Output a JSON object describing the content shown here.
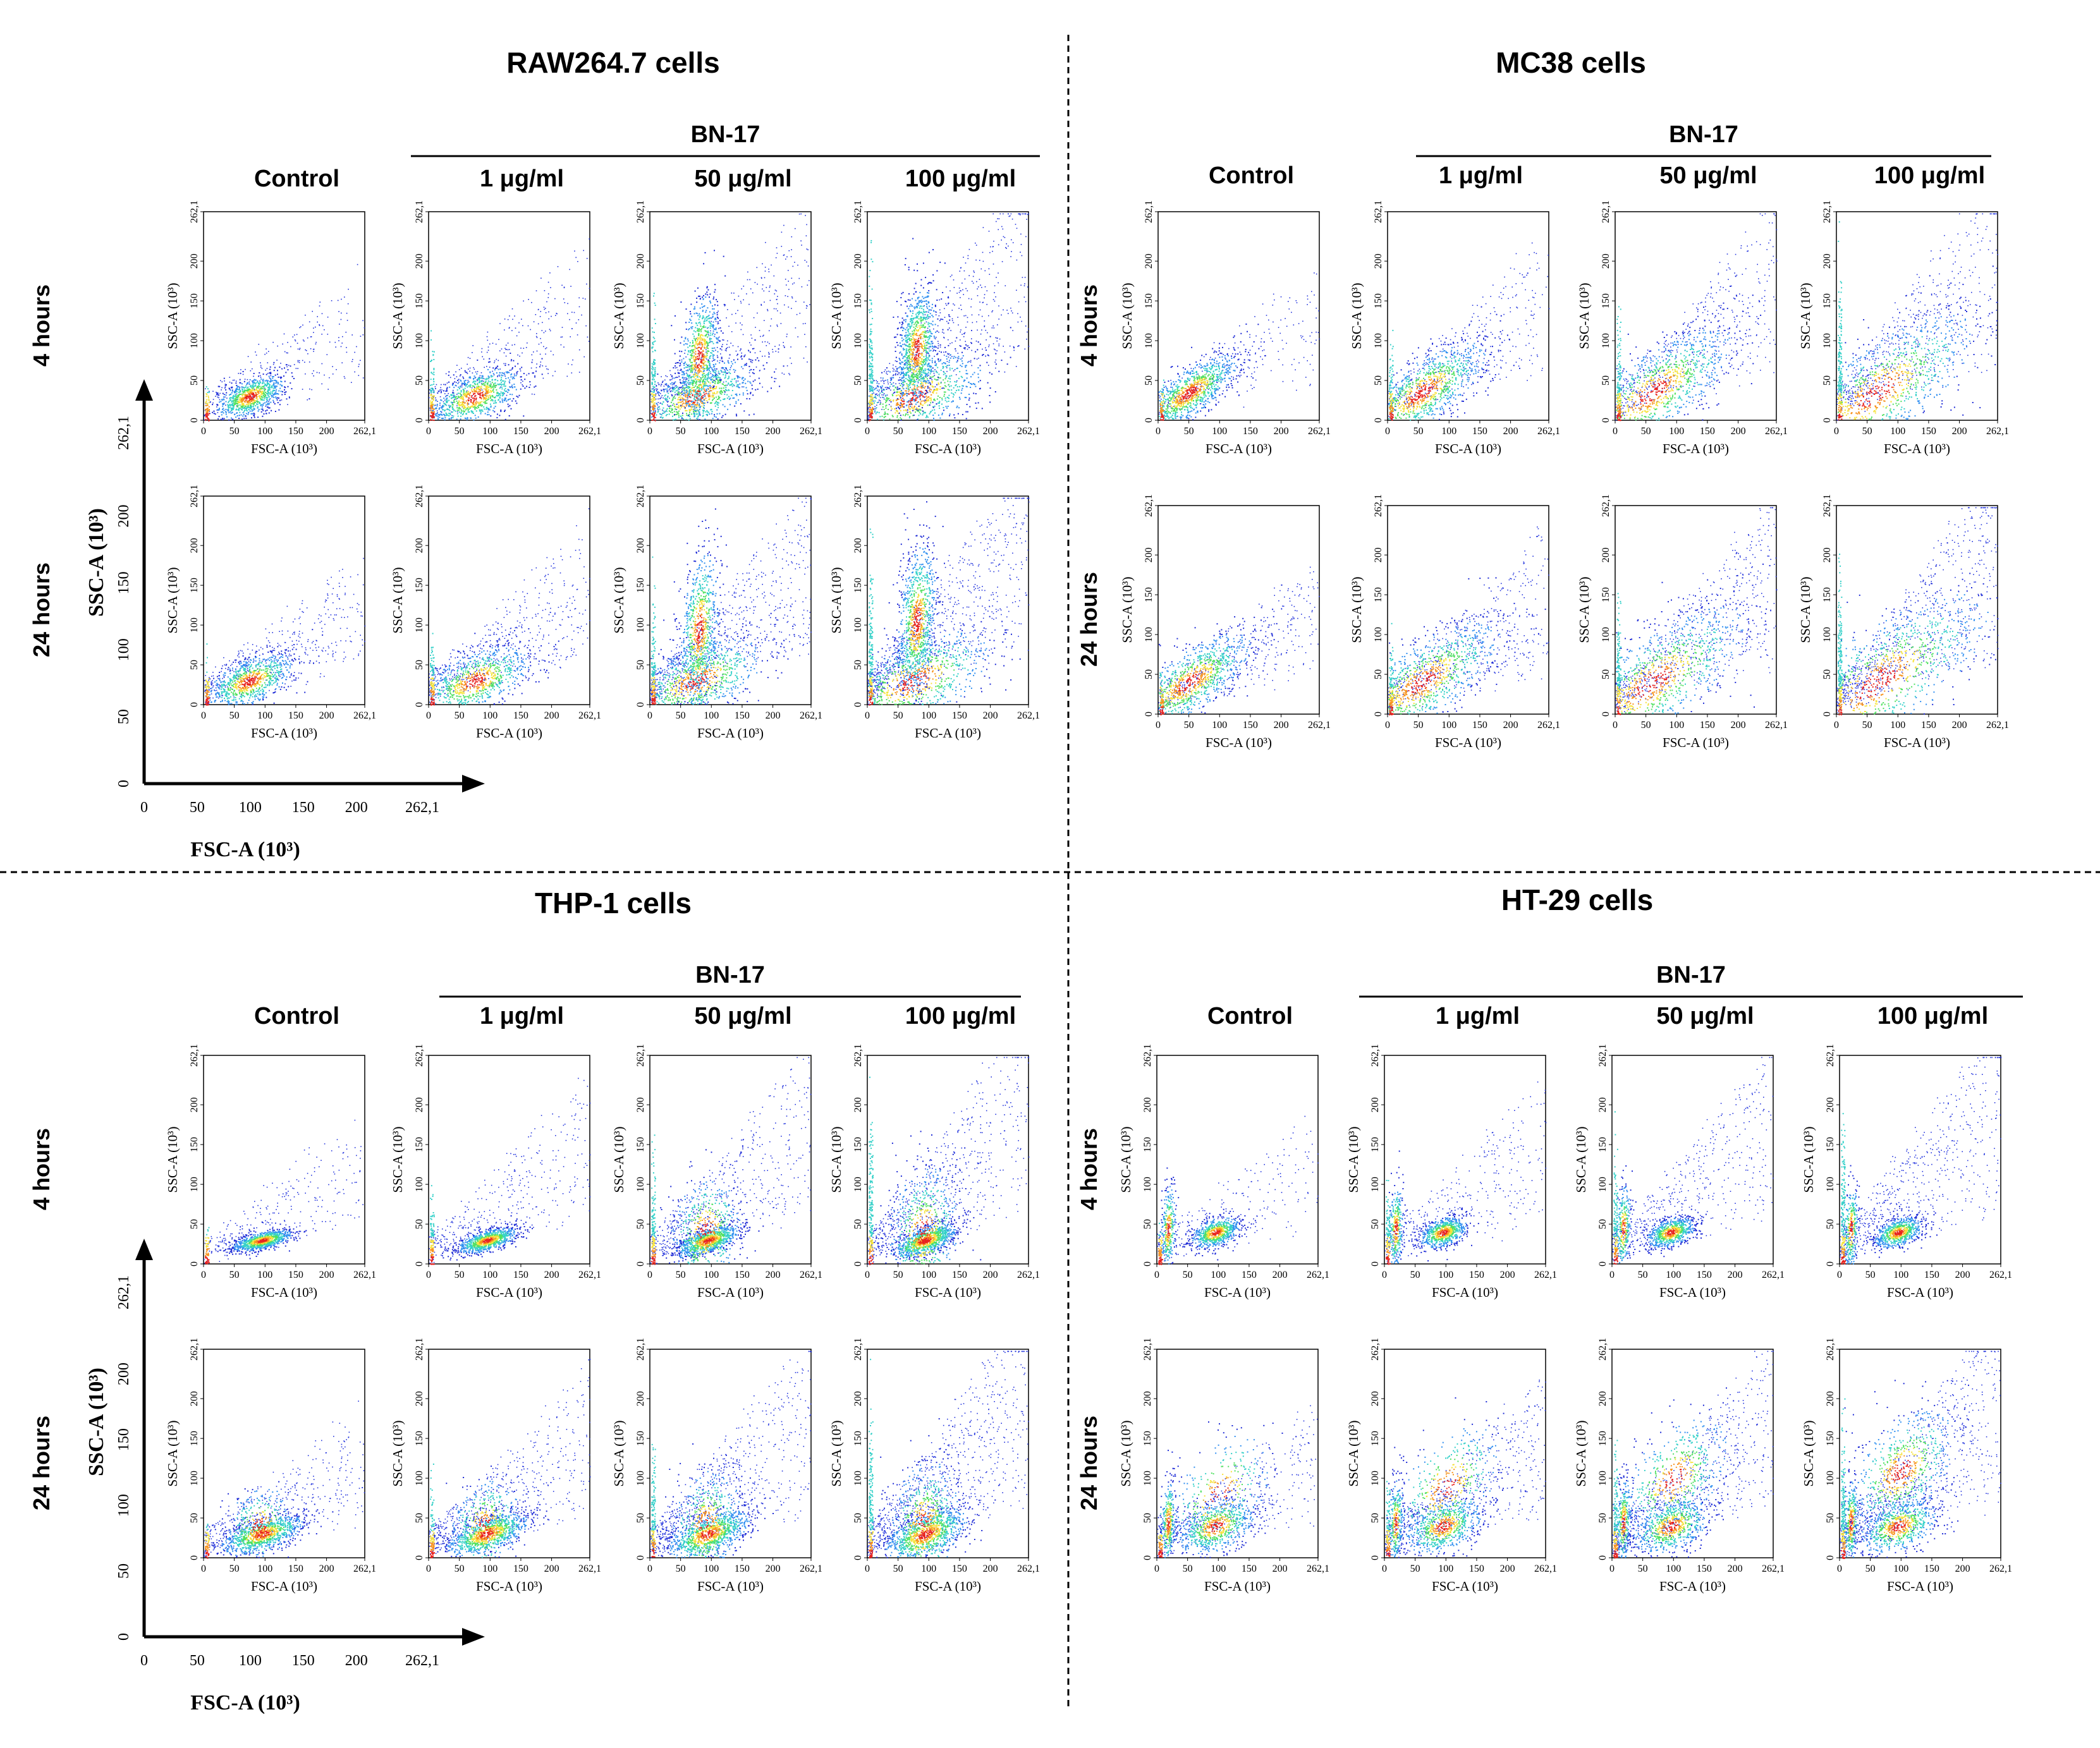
{
  "axes": {
    "x_label": "FSC-A (10³)",
    "y_label": "SSC-A (10³)",
    "ticks": [
      "0",
      "50",
      "100",
      "150",
      "200",
      "262,1"
    ]
  },
  "colors": {
    "scale": [
      "#1e2bd6",
      "#2f8ff0",
      "#33d0c8",
      "#4fe060",
      "#f5e23a",
      "#f7931e",
      "#e8231f"
    ],
    "sparse_dot": "#2233dd",
    "divider": "#000000"
  },
  "panels": [
    {
      "title": "RAW264.7 cells",
      "compound": "BN-17",
      "columns": [
        "Control",
        "1 μg/ml",
        "50 μg/ml",
        "100 μg/ml"
      ],
      "rows": [
        "4 hours",
        "24 hours"
      ]
    },
    {
      "title": "MC38 cells",
      "compound": "BN-17",
      "columns": [
        "Control",
        "1 μg/ml",
        "50 μg/ml",
        "100 μg/ml"
      ],
      "rows": [
        "4 hours",
        "24 hours"
      ]
    },
    {
      "title": "THP-1 cells",
      "compound": "BN-17",
      "columns": [
        "Control",
        "1 μg/ml",
        "50 μg/ml",
        "100 μg/ml"
      ],
      "rows": [
        "4 hours",
        "24 hours"
      ]
    },
    {
      "title": "HT-29 cells",
      "compound": "BN-17",
      "columns": [
        "Control",
        "1 μg/ml",
        "50 μg/ml",
        "100 μg/ml"
      ],
      "rows": [
        "4 hours",
        "24 hours"
      ]
    }
  ]
}
